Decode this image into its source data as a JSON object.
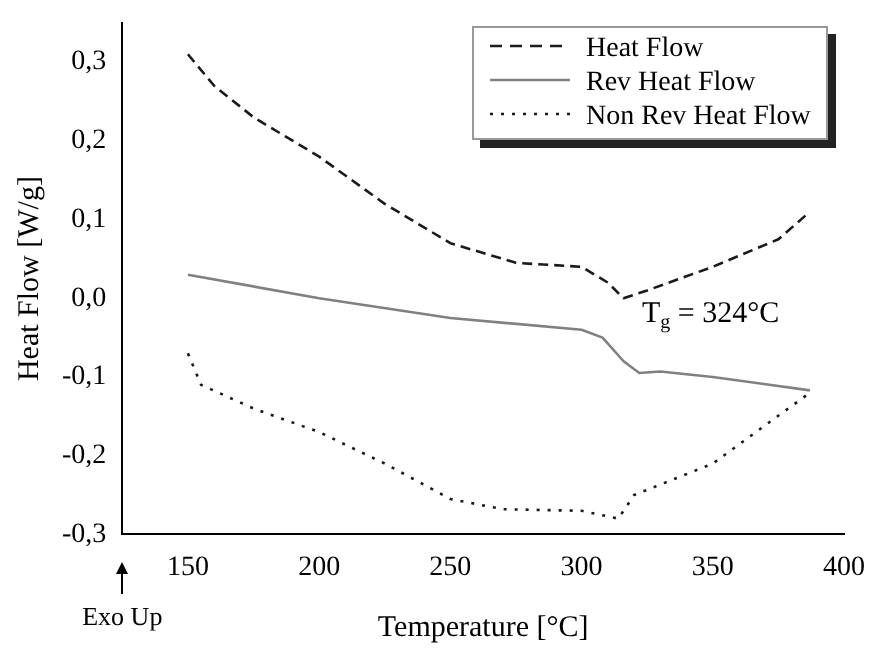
{
  "chart_data": {
    "type": "line",
    "xlabel": "Temperature [°C]",
    "ylabel": "Heat Flow [W/g]",
    "xlim": [
      125,
      400
    ],
    "xticks": [
      150,
      200,
      250,
      300,
      350,
      400
    ],
    "ylim": [
      -0.3,
      0.35
    ],
    "yticks": [
      {
        "value": -0.3,
        "label": "-0,3"
      },
      {
        "value": -0.2,
        "label": "-0,2"
      },
      {
        "value": -0.1,
        "label": "-0,1"
      },
      {
        "value": 0,
        "label": "0,0"
      },
      {
        "value": 0.1,
        "label": "0,1"
      },
      {
        "value": 0.2,
        "label": "0,2"
      },
      {
        "value": 0.3,
        "label": "0,3"
      }
    ],
    "legend": "top right",
    "grid": false,
    "marker": "none",
    "annotations": [
      "T$_{g}$ = 324°C",
      "Exo Up"
    ],
    "series": [
      {
        "name": "Heat Flow",
        "color": "#1a1a1a",
        "line_style": "dashed",
        "x": [
          150,
          160,
          175,
          200,
          225,
          250,
          275,
          300,
          310,
          316,
          325,
          350,
          375,
          387
        ],
        "values": [
          0.31,
          0.27,
          0.23,
          0.18,
          0.12,
          0.07,
          0.045,
          0.04,
          0.02,
          0.0,
          0.01,
          0.04,
          0.075,
          0.11
        ]
      },
      {
        "name": "Rev Heat Flow",
        "color": "#808080",
        "line_style": "solid",
        "x": [
          150,
          200,
          250,
          300,
          308,
          316,
          322,
          330,
          350,
          387
        ],
        "values": [
          0.03,
          0.0,
          -0.025,
          -0.04,
          -0.05,
          -0.08,
          -0.095,
          -0.093,
          -0.1,
          -0.117
        ]
      },
      {
        "name": "Non Rev Heat Flow",
        "color": "#1a1a1a",
        "line_style": "dotted",
        "x": [
          150,
          155,
          175,
          200,
          225,
          250,
          270,
          300,
          314,
          320,
          350,
          387
        ],
        "values": [
          -0.07,
          -0.11,
          -0.14,
          -0.17,
          -0.21,
          -0.255,
          -0.268,
          -0.27,
          -0.28,
          -0.25,
          -0.21,
          -0.12
        ]
      }
    ]
  }
}
